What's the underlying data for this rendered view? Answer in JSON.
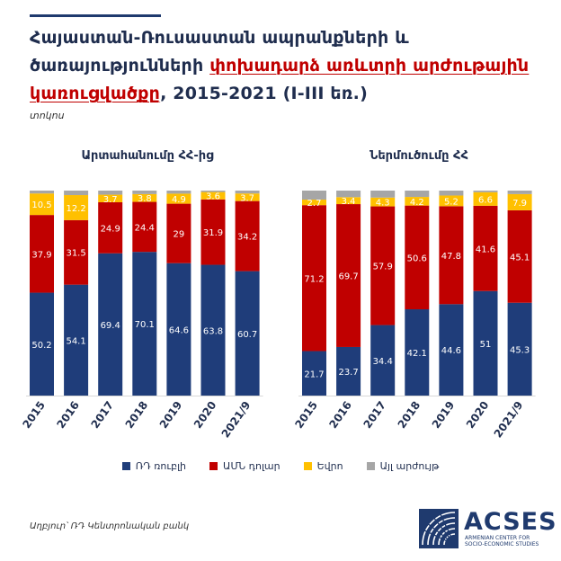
{
  "title": {
    "part1": "Հայաստան-Ռուսաստան ապրանքների և ծառայությունների ",
    "highlight": "փոխադարձ առևտրի արժութային կառուցվածքը",
    "part2": ", 2015-2021 (I-III եռ.)"
  },
  "unit": "տոկոս",
  "source": "Աղբյուր՝ ՌԴ Կենտրոնական բանկ",
  "logo": {
    "name": "ACSES",
    "sub_line1": "ARMENIAN CENTER FOR",
    "sub_line2": "SOCIO-ECONOMIC STUDIES"
  },
  "colors": {
    "rub": "#1f3d7a",
    "usd": "#c00000",
    "eur": "#ffc000",
    "other": "#a6a6a6"
  },
  "chart_data": [
    {
      "type": "bar",
      "stacked": true,
      "title": "Արտահանումը ՀՀ-ից",
      "categories": [
        "2015",
        "2016",
        "2017",
        "2018",
        "2019",
        "2020",
        "2021/9"
      ],
      "series": [
        {
          "name": "ՌԴ ռուբլի",
          "values": [
            50.2,
            54.1,
            69.4,
            70.1,
            64.6,
            63.8,
            60.7
          ]
        },
        {
          "name": "ԱՄՆ դոլար",
          "values": [
            37.9,
            31.5,
            24.9,
            24.4,
            29,
            31.9,
            34.2
          ]
        },
        {
          "name": "Եվրո",
          "values": [
            10.5,
            12.2,
            3.7,
            3.8,
            4.9,
            3.6,
            3.7
          ]
        },
        {
          "name": "Այլ արժույթ",
          "values": [
            1.4,
            2.2,
            2.0,
            1.7,
            1.5,
            0.7,
            1.4
          ]
        }
      ],
      "ylim": [
        0,
        100
      ]
    },
    {
      "type": "bar",
      "stacked": true,
      "title": "Ներմուծումը ՀՀ",
      "categories": [
        "2015",
        "2016",
        "2017",
        "2018",
        "2019",
        "2020",
        "2021/9"
      ],
      "series": [
        {
          "name": "ՌԴ ռուբլի",
          "values": [
            21.7,
            23.7,
            34.4,
            42.1,
            44.6,
            51,
            45.3
          ]
        },
        {
          "name": "ԱՄՆ դոլար",
          "values": [
            71.2,
            69.7,
            57.9,
            50.6,
            47.8,
            41.6,
            45.1
          ]
        },
        {
          "name": "Եվրո",
          "values": [
            2.7,
            3.4,
            4.3,
            4.2,
            5.2,
            6.6,
            7.9
          ]
        },
        {
          "name": "Այլ արժույթ",
          "values": [
            4.4,
            3.2,
            3.4,
            3.1,
            2.4,
            0.8,
            1.7
          ]
        }
      ],
      "ylim": [
        0,
        100
      ]
    }
  ],
  "label_series": [
    0,
    1,
    2
  ]
}
